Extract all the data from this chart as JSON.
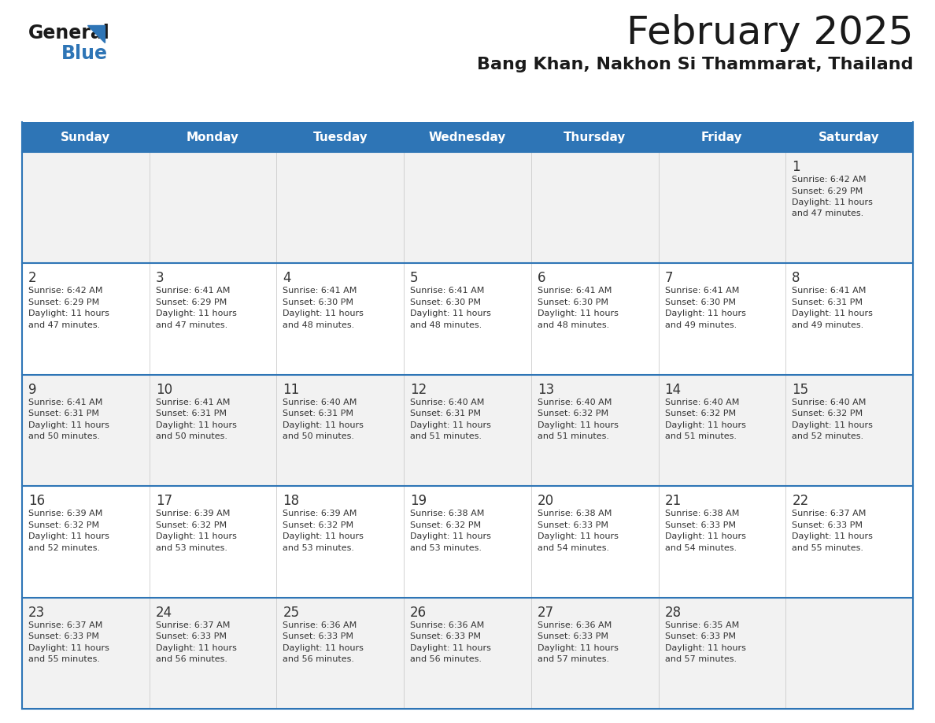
{
  "title": "February 2025",
  "subtitle": "Bang Khan, Nakhon Si Thammarat, Thailand",
  "header_bg_color": "#2E75B6",
  "header_text_color": "#FFFFFF",
  "cell_bg_odd": "#F2F2F2",
  "cell_bg_even": "#FFFFFF",
  "day_number_color": "#333333",
  "info_text_color": "#333333",
  "border_color": "#2E75B6",
  "inner_border_color": "#CCCCCC",
  "days_of_week": [
    "Sunday",
    "Monday",
    "Tuesday",
    "Wednesday",
    "Thursday",
    "Friday",
    "Saturday"
  ],
  "weeks": [
    [
      null,
      null,
      null,
      null,
      null,
      null,
      1
    ],
    [
      2,
      3,
      4,
      5,
      6,
      7,
      8
    ],
    [
      9,
      10,
      11,
      12,
      13,
      14,
      15
    ],
    [
      16,
      17,
      18,
      19,
      20,
      21,
      22
    ],
    [
      23,
      24,
      25,
      26,
      27,
      28,
      null
    ]
  ],
  "cell_data": {
    "1": {
      "sunrise": "6:42 AM",
      "sunset": "6:29 PM",
      "daylight_hours": 11,
      "daylight_minutes": 47
    },
    "2": {
      "sunrise": "6:42 AM",
      "sunset": "6:29 PM",
      "daylight_hours": 11,
      "daylight_minutes": 47
    },
    "3": {
      "sunrise": "6:41 AM",
      "sunset": "6:29 PM",
      "daylight_hours": 11,
      "daylight_minutes": 47
    },
    "4": {
      "sunrise": "6:41 AM",
      "sunset": "6:30 PM",
      "daylight_hours": 11,
      "daylight_minutes": 48
    },
    "5": {
      "sunrise": "6:41 AM",
      "sunset": "6:30 PM",
      "daylight_hours": 11,
      "daylight_minutes": 48
    },
    "6": {
      "sunrise": "6:41 AM",
      "sunset": "6:30 PM",
      "daylight_hours": 11,
      "daylight_minutes": 48
    },
    "7": {
      "sunrise": "6:41 AM",
      "sunset": "6:30 PM",
      "daylight_hours": 11,
      "daylight_minutes": 49
    },
    "8": {
      "sunrise": "6:41 AM",
      "sunset": "6:31 PM",
      "daylight_hours": 11,
      "daylight_minutes": 49
    },
    "9": {
      "sunrise": "6:41 AM",
      "sunset": "6:31 PM",
      "daylight_hours": 11,
      "daylight_minutes": 50
    },
    "10": {
      "sunrise": "6:41 AM",
      "sunset": "6:31 PM",
      "daylight_hours": 11,
      "daylight_minutes": 50
    },
    "11": {
      "sunrise": "6:40 AM",
      "sunset": "6:31 PM",
      "daylight_hours": 11,
      "daylight_minutes": 50
    },
    "12": {
      "sunrise": "6:40 AM",
      "sunset": "6:31 PM",
      "daylight_hours": 11,
      "daylight_minutes": 51
    },
    "13": {
      "sunrise": "6:40 AM",
      "sunset": "6:32 PM",
      "daylight_hours": 11,
      "daylight_minutes": 51
    },
    "14": {
      "sunrise": "6:40 AM",
      "sunset": "6:32 PM",
      "daylight_hours": 11,
      "daylight_minutes": 51
    },
    "15": {
      "sunrise": "6:40 AM",
      "sunset": "6:32 PM",
      "daylight_hours": 11,
      "daylight_minutes": 52
    },
    "16": {
      "sunrise": "6:39 AM",
      "sunset": "6:32 PM",
      "daylight_hours": 11,
      "daylight_minutes": 52
    },
    "17": {
      "sunrise": "6:39 AM",
      "sunset": "6:32 PM",
      "daylight_hours": 11,
      "daylight_minutes": 53
    },
    "18": {
      "sunrise": "6:39 AM",
      "sunset": "6:32 PM",
      "daylight_hours": 11,
      "daylight_minutes": 53
    },
    "19": {
      "sunrise": "6:38 AM",
      "sunset": "6:32 PM",
      "daylight_hours": 11,
      "daylight_minutes": 53
    },
    "20": {
      "sunrise": "6:38 AM",
      "sunset": "6:33 PM",
      "daylight_hours": 11,
      "daylight_minutes": 54
    },
    "21": {
      "sunrise": "6:38 AM",
      "sunset": "6:33 PM",
      "daylight_hours": 11,
      "daylight_minutes": 54
    },
    "22": {
      "sunrise": "6:37 AM",
      "sunset": "6:33 PM",
      "daylight_hours": 11,
      "daylight_minutes": 55
    },
    "23": {
      "sunrise": "6:37 AM",
      "sunset": "6:33 PM",
      "daylight_hours": 11,
      "daylight_minutes": 55
    },
    "24": {
      "sunrise": "6:37 AM",
      "sunset": "6:33 PM",
      "daylight_hours": 11,
      "daylight_minutes": 56
    },
    "25": {
      "sunrise": "6:36 AM",
      "sunset": "6:33 PM",
      "daylight_hours": 11,
      "daylight_minutes": 56
    },
    "26": {
      "sunrise": "6:36 AM",
      "sunset": "6:33 PM",
      "daylight_hours": 11,
      "daylight_minutes": 56
    },
    "27": {
      "sunrise": "6:36 AM",
      "sunset": "6:33 PM",
      "daylight_hours": 11,
      "daylight_minutes": 57
    },
    "28": {
      "sunrise": "6:35 AM",
      "sunset": "6:33 PM",
      "daylight_hours": 11,
      "daylight_minutes": 57
    }
  },
  "figsize": [
    11.88,
    9.18
  ],
  "dpi": 100
}
